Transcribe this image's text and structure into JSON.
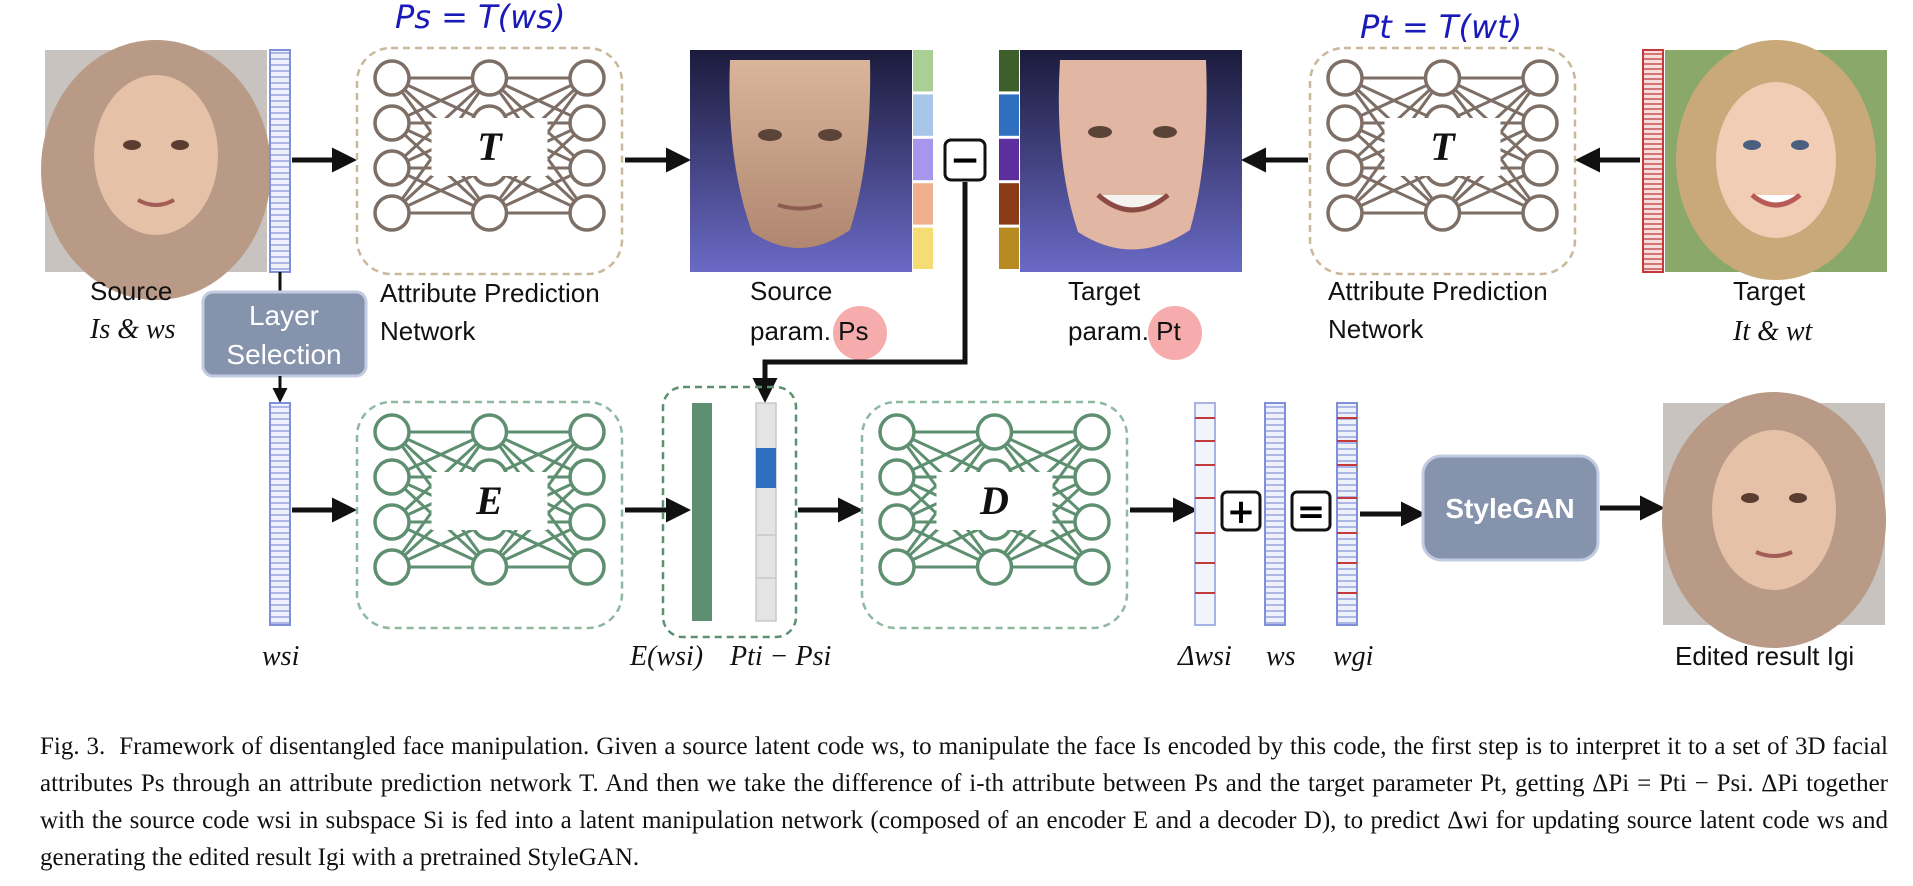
{
  "handwritten": {
    "source_formula": "Ps = T(ws)",
    "target_formula": "Pt = T(wt)"
  },
  "labels": {
    "source": "Source",
    "source_sub": "Is & ws",
    "attr_net_top_left": "Attribute Prediction",
    "attr_net_bottom_left": "Network",
    "source_param": "Source",
    "source_param_sub": "param. Ps",
    "target_param": "Target",
    "target_param_sub": "param. Pt",
    "attr_net_top_right": "Attribute Prediction",
    "attr_net_bottom_right": "Network",
    "target": "Target",
    "target_sub": "It &  wt",
    "layer_selection_1": "Layer",
    "layer_selection_2": "Selection",
    "wsi": "wsi",
    "e_ws": "E(wsi)",
    "pt_minus_ps": "Pti − Psi",
    "delta_ws": "Δwsi",
    "ws": "ws",
    "wg": "wgi",
    "stylegan": "StyleGAN",
    "edited_result": "Edited result Igi",
    "net_T": "T",
    "net_E": "E",
    "net_D": "D",
    "minus": "−",
    "plus": "+",
    "equals": "="
  },
  "caption": {
    "figure": "Fig. 3.",
    "text": "Framework of disentangled face manipulation. Given a source latent code ws, to manipulate the face Is encoded by this code, the first step is to interpret it to a set of 3D facial attributes Ps through an attribute prediction network T. And then we take the difference of i-th attribute between Ps and the target parameter Pt, getting ΔPi = Pti − Psi. ΔPi together with the source code wsi in subspace Si is fed into a latent manipulation network (composed of an encoder E and a decoder D), to predict Δwi for updating source latent code ws and generating the edited result Igi with a pretrained StyleGAN."
  },
  "colors": {
    "brown_net": "#7d6e66",
    "green_net": "#5e8f70",
    "box_fill": "#8693ad",
    "highlight": "#f5a3a3",
    "hand_ink": "#1a1ab8",
    "source_bar": [
      "#a9cf94",
      "#a8c6ea",
      "#a896ee",
      "#f0b090",
      "#f6dc74"
    ],
    "target_bar": [
      "#3e5e2a",
      "#2e6fc0",
      "#5c2e9e",
      "#8a3a16",
      "#b88a22"
    ]
  }
}
